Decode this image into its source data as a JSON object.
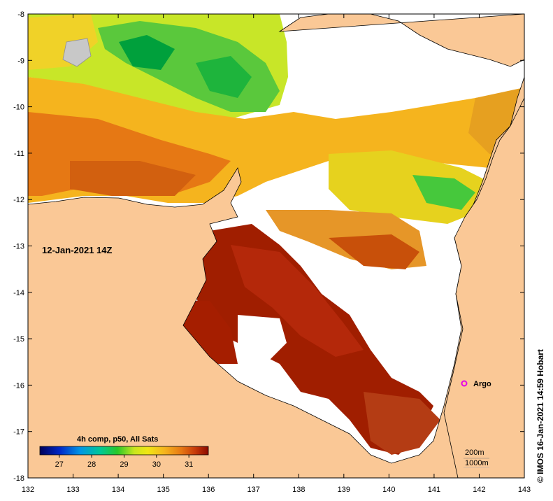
{
  "map": {
    "timestamp_label": "12-Jan-2021 14Z",
    "credit": "© IMOS 16-Jan-2021 14:59 Hobart",
    "argo_label": "Argo",
    "x_ticks": [
      "132",
      "133",
      "134",
      "135",
      "136",
      "137",
      "138",
      "139",
      "140",
      "141",
      "142",
      "143"
    ],
    "y_ticks": [
      "-8",
      "-9",
      "-10",
      "-11",
      "-12",
      "-13",
      "-14",
      "-15",
      "-16",
      "-17",
      "-18"
    ],
    "colorbar": {
      "title": "4h comp, p50, All Sats",
      "tick_labels": [
        "27",
        "28",
        "29",
        "30",
        "31"
      ]
    },
    "contour_legend": [
      "200m",
      "1000m"
    ],
    "colors": {
      "land": "#fac896",
      "no_data": "#ffffff",
      "argo_marker": "#e600e6",
      "warm_sst": "#9b1400",
      "mid_sst": "#e8a020",
      "cool_sst": "#22b24c"
    }
  },
  "chart_data": {
    "type": "heatmap",
    "x_range": [
      132,
      143
    ],
    "y_range": [
      -18,
      -8
    ],
    "colorbar_range": [
      26.4,
      31.6
    ],
    "colorbar_ticks": [
      27,
      28,
      29,
      30,
      31
    ],
    "argo_position": [
      141.7,
      -16.0
    ]
  }
}
